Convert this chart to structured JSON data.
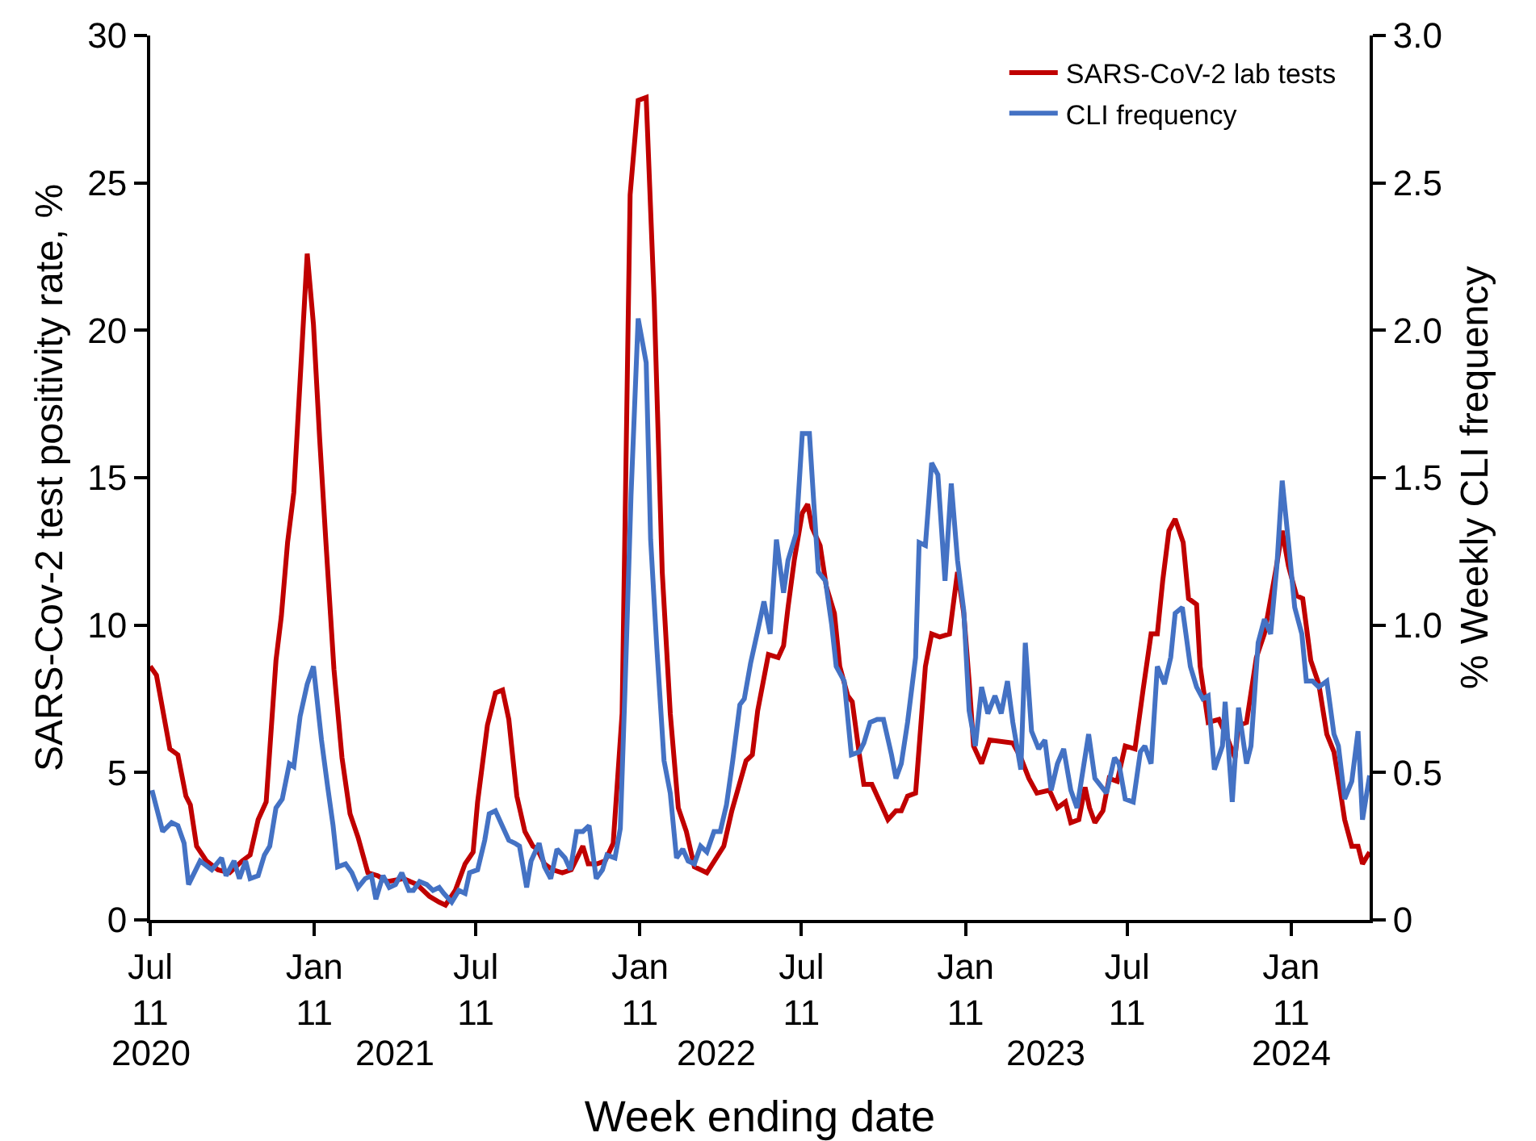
{
  "chart_data": {
    "type": "line",
    "xlabel": "Week ending date",
    "ylabel": "SARS-Cov-2 test positivity rate, %",
    "y2label": "% Weekly CLI frequency",
    "xlim": [
      "2020-07-11",
      "2024-04-08"
    ],
    "xticks": [
      {
        "value": "2020-07-11",
        "label": "Jul\n11"
      },
      {
        "value": "2021-01-11",
        "label": "Jan\n11"
      },
      {
        "value": "2021-07-11",
        "label": "Jul\n11"
      },
      {
        "value": "2022-01-11",
        "label": "Jan\n11"
      },
      {
        "value": "2022-07-11",
        "label": "Jul\n11"
      },
      {
        "value": "2023-01-11",
        "label": "Jan\n11"
      },
      {
        "value": "2023-07-11",
        "label": "Jul\n11"
      },
      {
        "value": "2024-01-11",
        "label": "Jan\n11"
      }
    ],
    "x2lim": [
      "2020-07-11",
      "2024-04-08"
    ],
    "x2ticks": [
      {
        "value": "2020-07-11",
        "label": "2020"
      },
      {
        "value": "2021-04-11",
        "label": "2021"
      },
      {
        "value": "2022-04-06",
        "label": "2022"
      },
      {
        "value": "2023-04-11",
        "label": "2023"
      },
      {
        "value": "2024-01-11",
        "label": "2024"
      }
    ],
    "ylim": [
      0,
      30
    ],
    "yticks": [
      0,
      5,
      10,
      15,
      20,
      25,
      30
    ],
    "y2lim": [
      0,
      3
    ],
    "y2ticks": [
      0,
      0.5,
      {
        "value": 1,
        "label": "1.0"
      },
      1.5,
      {
        "value": 2,
        "label": "2.0"
      },
      2.5,
      {
        "value": 3,
        "label": "3.0"
      }
    ],
    "grid": false,
    "legend": "top right",
    "marker": "none",
    "line_style": "solid",
    "series": [
      {
        "name": "SARS-CoV-2 lab tests",
        "color": "#c00000",
        "x": [
          "2020-07-11",
          "2020-07-18",
          "2020-08-02",
          "2020-08-11",
          "2020-08-20",
          "2020-08-25",
          "2020-09-01",
          "2020-09-12",
          "2020-09-25",
          "2020-10-08",
          "2020-10-22",
          "2020-10-31",
          "2020-11-09",
          "2020-11-18",
          "2020-11-29",
          "2020-12-05",
          "2020-12-12",
          "2020-12-19",
          "2021-01-03",
          "2021-01-10",
          "2021-01-17",
          "2021-01-24",
          "2021-02-02",
          "2021-02-11",
          "2021-02-20",
          "2021-03-01",
          "2021-03-12",
          "2021-03-23",
          "2021-04-03",
          "2021-04-21",
          "2021-05-06",
          "2021-05-20",
          "2021-05-31",
          "2021-06-07",
          "2021-06-18",
          "2021-06-29",
          "2021-07-08",
          "2021-07-13",
          "2021-07-24",
          "2021-08-02",
          "2021-08-10",
          "2021-08-17",
          "2021-08-26",
          "2021-09-04",
          "2021-09-13",
          "2021-09-18",
          "2021-09-26",
          "2021-10-05",
          "2021-10-16",
          "2021-10-26",
          "2021-11-08",
          "2021-11-14",
          "2021-11-24",
          "2021-12-03",
          "2021-12-12",
          "2021-12-22",
          "2021-12-31",
          "2022-01-09",
          "2022-01-18",
          "2022-01-27",
          "2022-02-05",
          "2022-02-14",
          "2022-02-23",
          "2022-03-04",
          "2022-03-13",
          "2022-03-27",
          "2022-04-15",
          "2022-04-24",
          "2022-05-10",
          "2022-05-17",
          "2022-05-23",
          "2022-06-04",
          "2022-06-15",
          "2022-06-21",
          "2022-06-26",
          "2022-07-03",
          "2022-07-12",
          "2022-07-18",
          "2022-07-23",
          "2022-08-01",
          "2022-08-08",
          "2022-08-17",
          "2022-08-23",
          "2022-09-01",
          "2022-09-06",
          "2022-09-14",
          "2022-09-19",
          "2022-09-28",
          "2022-10-07",
          "2022-10-16",
          "2022-10-25",
          "2022-10-31",
          "2022-11-07",
          "2022-11-16",
          "2022-11-27",
          "2022-12-04",
          "2022-12-13",
          "2022-12-24",
          "2023-01-02",
          "2023-01-09",
          "2023-01-15",
          "2023-01-20",
          "2023-01-29",
          "2023-02-07",
          "2023-03-05",
          "2023-03-14",
          "2023-03-23",
          "2023-04-01",
          "2023-04-15",
          "2023-04-24",
          "2023-05-03",
          "2023-05-09",
          "2023-05-18",
          "2023-05-25",
          "2023-05-30",
          "2023-06-05",
          "2023-06-14",
          "2023-06-21",
          "2023-06-30",
          "2023-07-09",
          "2023-07-20",
          "2023-07-29",
          "2023-08-07",
          "2023-08-14",
          "2023-08-20",
          "2023-08-27",
          "2023-09-03",
          "2023-09-12",
          "2023-09-18",
          "2023-09-27",
          "2023-10-01",
          "2023-10-10",
          "2023-10-22",
          "2023-10-31",
          "2023-11-09",
          "2023-11-13",
          "2023-11-22",
          "2023-12-03",
          "2023-12-12",
          "2023-12-25",
          "2024-01-01",
          "2024-01-08",
          "2024-01-17",
          "2024-01-24",
          "2024-02-02",
          "2024-02-11",
          "2024-02-20",
          "2024-02-28",
          "2024-03-06",
          "2024-03-11",
          "2024-03-19",
          "2024-03-26",
          "2024-03-31",
          "2024-04-08"
        ],
        "values": [
          8.6,
          8.3,
          5.8,
          5.6,
          4.2,
          3.9,
          2.5,
          2.0,
          1.7,
          1.6,
          2.0,
          2.2,
          3.4,
          4.0,
          8.8,
          10.3,
          12.8,
          14.5,
          22.6,
          20.2,
          16.3,
          12.8,
          8.5,
          5.5,
          3.6,
          2.8,
          1.6,
          1.5,
          1.3,
          1.4,
          1.2,
          0.8,
          0.6,
          0.5,
          1.0,
          1.9,
          2.3,
          4.0,
          6.6,
          7.7,
          7.8,
          6.8,
          4.2,
          3.0,
          2.5,
          2.4,
          1.9,
          1.7,
          1.6,
          1.7,
          2.5,
          1.9,
          1.9,
          2.0,
          2.6,
          7.0,
          24.6,
          27.8,
          27.9,
          21.0,
          11.8,
          7.0,
          3.8,
          3.0,
          1.8,
          1.6,
          2.5,
          3.7,
          5.4,
          5.6,
          7.1,
          9.0,
          8.9,
          9.3,
          10.6,
          12.2,
          13.8,
          14.1,
          13.3,
          12.7,
          11.3,
          10.4,
          8.6,
          7.6,
          7.4,
          5.6,
          4.6,
          4.6,
          4.0,
          3.4,
          3.7,
          3.7,
          4.2,
          4.3,
          8.6,
          9.7,
          9.6,
          9.7,
          11.8,
          10.4,
          8.1,
          5.9,
          5.3,
          6.1,
          6.0,
          5.5,
          4.8,
          4.3,
          4.4,
          3.8,
          4.0,
          3.3,
          3.4,
          4.5,
          3.8,
          3.3,
          3.7,
          4.8,
          4.7,
          5.9,
          5.8,
          7.8,
          9.7,
          9.7,
          11.5,
          13.2,
          13.6,
          12.8,
          10.9,
          10.7,
          8.6,
          6.7,
          6.8,
          6.2,
          5.5,
          6.6,
          6.7,
          8.9,
          9.7,
          11.9,
          13.2,
          12.0,
          11.0,
          10.9,
          8.8,
          8.0,
          6.3,
          5.7,
          4.4,
          3.4,
          2.5,
          2.5,
          1.9,
          2.3
        ]
      },
      {
        "name": "CLI frequency",
        "color": "#4472c4",
        "axis": "y2",
        "x": [
          "2020-07-13",
          "2020-07-25",
          "2020-08-04",
          "2020-08-11",
          "2020-08-18",
          "2020-08-23",
          "2020-09-05",
          "2020-09-18",
          "2020-09-29",
          "2020-10-04",
          "2020-10-13",
          "2020-10-19",
          "2020-10-26",
          "2020-10-31",
          "2020-11-09",
          "2020-11-16",
          "2020-11-22",
          "2020-11-29",
          "2020-12-06",
          "2020-12-14",
          "2020-12-19",
          "2020-12-26",
          "2021-01-03",
          "2021-01-10",
          "2021-01-19",
          "2021-01-26",
          "2021-02-01",
          "2021-02-06",
          "2021-02-15",
          "2021-02-22",
          "2021-03-01",
          "2021-03-09",
          "2021-03-16",
          "2021-03-21",
          "2021-03-29",
          "2021-04-05",
          "2021-04-12",
          "2021-04-19",
          "2021-04-27",
          "2021-05-02",
          "2021-05-09",
          "2021-05-17",
          "2021-05-24",
          "2021-05-31",
          "2021-06-05",
          "2021-06-14",
          "2021-06-22",
          "2021-06-29",
          "2021-07-04",
          "2021-07-13",
          "2021-07-21",
          "2021-07-26",
          "2021-08-02",
          "2021-08-08",
          "2021-08-17",
          "2021-08-24",
          "2021-08-29",
          "2021-09-06",
          "2021-09-11",
          "2021-09-20",
          "2021-09-26",
          "2021-10-03",
          "2021-10-10",
          "2021-10-19",
          "2021-10-25",
          "2021-11-01",
          "2021-11-08",
          "2021-11-15",
          "2021-11-23",
          "2021-11-30",
          "2021-12-05",
          "2021-12-14",
          "2021-12-20",
          "2021-12-25",
          "2022-01-01",
          "2022-01-09",
          "2022-01-18",
          "2022-01-23",
          "2022-01-30",
          "2022-02-07",
          "2022-02-14",
          "2022-02-21",
          "2022-02-28",
          "2022-03-06",
          "2022-03-13",
          "2022-03-20",
          "2022-03-27",
          "2022-04-04",
          "2022-04-11",
          "2022-04-18",
          "2022-04-25",
          "2022-05-03",
          "2022-05-08",
          "2022-05-15",
          "2022-05-23",
          "2022-05-30",
          "2022-06-06",
          "2022-06-13",
          "2022-06-21",
          "2022-06-26",
          "2022-07-05",
          "2022-07-12",
          "2022-07-20",
          "2022-07-25",
          "2022-07-30",
          "2022-08-07",
          "2022-08-14",
          "2022-08-19",
          "2022-08-28",
          "2022-09-05",
          "2022-09-14",
          "2022-09-19",
          "2022-09-26",
          "2022-10-04",
          "2022-10-11",
          "2022-10-20",
          "2022-10-25",
          "2022-10-31",
          "2022-11-07",
          "2022-11-16",
          "2022-11-20",
          "2022-11-27",
          "2022-12-04",
          "2022-12-11",
          "2022-12-19",
          "2022-12-26",
          "2023-01-02",
          "2023-01-09",
          "2023-01-15",
          "2023-01-22",
          "2023-01-29",
          "2023-02-05",
          "2023-02-13",
          "2023-02-20",
          "2023-02-27",
          "2023-03-05",
          "2023-03-14",
          "2023-03-19",
          "2023-03-26",
          "2023-04-03",
          "2023-04-10",
          "2023-04-17",
          "2023-04-24",
          "2023-05-01",
          "2023-05-09",
          "2023-05-16",
          "2023-05-29",
          "2023-06-05",
          "2023-06-18",
          "2023-06-27",
          "2023-07-02",
          "2023-07-09",
          "2023-07-18",
          "2023-07-26",
          "2023-07-31",
          "2023-08-07",
          "2023-08-14",
          "2023-08-22",
          "2023-08-29",
          "2023-09-03",
          "2023-09-11",
          "2023-09-20",
          "2023-09-27",
          "2023-10-04",
          "2023-10-10",
          "2023-10-17",
          "2023-10-26",
          "2023-10-29",
          "2023-11-06",
          "2023-11-13",
          "2023-11-22",
          "2023-11-27",
          "2023-12-05",
          "2023-12-12",
          "2023-12-19",
          "2023-12-26",
          "2024-01-01",
          "2024-01-08",
          "2024-01-15",
          "2024-01-23",
          "2024-01-28",
          "2024-02-04",
          "2024-02-11",
          "2024-02-20",
          "2024-02-28",
          "2024-03-04",
          "2024-03-11",
          "2024-03-19",
          "2024-03-26",
          "2024-03-31",
          "2024-04-08"
        ],
        "values": [
          0.44,
          0.3,
          0.33,
          0.32,
          0.26,
          0.12,
          0.2,
          0.17,
          0.21,
          0.15,
          0.2,
          0.14,
          0.2,
          0.14,
          0.15,
          0.22,
          0.25,
          0.38,
          0.41,
          0.53,
          0.52,
          0.69,
          0.8,
          0.86,
          0.61,
          0.45,
          0.32,
          0.18,
          0.19,
          0.16,
          0.11,
          0.14,
          0.15,
          0.07,
          0.15,
          0.11,
          0.12,
          0.16,
          0.1,
          0.1,
          0.13,
          0.12,
          0.1,
          0.11,
          0.09,
          0.06,
          0.1,
          0.09,
          0.16,
          0.17,
          0.27,
          0.36,
          0.37,
          0.33,
          0.27,
          0.26,
          0.25,
          0.11,
          0.2,
          0.26,
          0.18,
          0.14,
          0.24,
          0.21,
          0.17,
          0.3,
          0.3,
          0.32,
          0.14,
          0.17,
          0.22,
          0.21,
          0.31,
          0.76,
          1.44,
          2.04,
          1.89,
          1.29,
          0.92,
          0.54,
          0.43,
          0.21,
          0.24,
          0.2,
          0.19,
          0.25,
          0.23,
          0.3,
          0.3,
          0.39,
          0.54,
          0.73,
          0.75,
          0.87,
          0.98,
          1.08,
          0.97,
          1.29,
          1.11,
          1.22,
          1.31,
          1.65,
          1.65,
          1.41,
          1.18,
          1.15,
          1.0,
          0.86,
          0.81,
          0.56,
          0.57,
          0.6,
          0.67,
          0.68,
          0.68,
          0.56,
          0.48,
          0.53,
          0.67,
          0.89,
          1.28,
          1.27,
          1.55,
          1.51,
          1.15,
          1.48,
          1.22,
          1.05,
          0.71,
          0.59,
          0.79,
          0.7,
          0.76,
          0.7,
          0.81,
          0.67,
          0.51,
          0.94,
          0.64,
          0.58,
          0.61,
          0.44,
          0.53,
          0.58,
          0.44,
          0.38,
          0.63,
          0.48,
          0.43,
          0.55,
          0.53,
          0.41,
          0.4,
          0.57,
          0.59,
          0.53,
          0.86,
          0.8,
          0.89,
          1.04,
          1.06,
          0.86,
          0.79,
          0.75,
          0.76,
          0.51,
          0.59,
          0.74,
          0.4,
          0.72,
          0.53,
          0.59,
          0.94,
          1.02,
          0.97,
          1.2,
          1.49,
          1.28,
          1.06,
          0.97,
          0.81,
          0.81,
          0.79,
          0.81,
          0.63,
          0.59,
          0.41,
          0.47,
          0.64,
          0.34,
          0.49
        ]
      }
    ]
  }
}
